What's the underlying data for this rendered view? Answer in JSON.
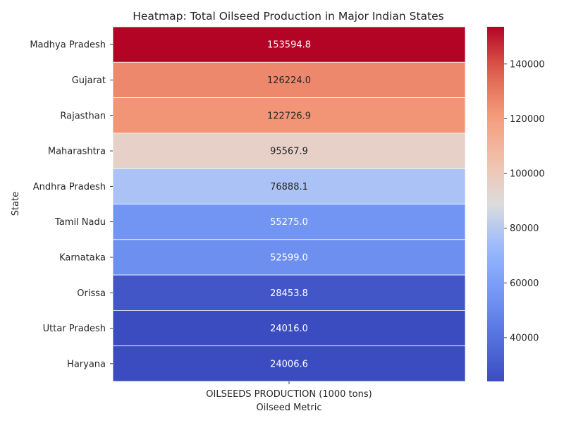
{
  "chart_data": {
    "type": "heatmap",
    "title": "Heatmap: Total Oilseed Production in Major Indian States",
    "xlabel": "Oilseed Metric",
    "ylabel": "State",
    "columns": [
      "OILSEEDS PRODUCTION (1000 tons)"
    ],
    "rows": [
      "Madhya Pradesh",
      "Gujarat",
      "Rajasthan",
      "Maharashtra",
      "Andhra Pradesh",
      "Tamil Nadu",
      "Karnataka",
      "Orissa",
      "Uttar Pradesh",
      "Haryana"
    ],
    "values": [
      153594.8,
      126224.0,
      122726.9,
      95567.9,
      76888.1,
      55275.0,
      52599.0,
      28453.8,
      24016.0,
      24006.6
    ],
    "value_labels": [
      "153594.8",
      "126224.0",
      "122726.9",
      "95567.9",
      "76888.1",
      "55275.0",
      "52599.0",
      "28453.8",
      "24016.0",
      "24006.6"
    ],
    "colormap": "coolwarm",
    "colorbar": {
      "range": [
        24006.6,
        153594.8
      ],
      "ticks": [
        40000,
        60000,
        80000,
        100000,
        120000,
        140000
      ],
      "tick_labels": [
        "40000",
        "60000",
        "80000",
        "100000",
        "120000",
        "140000"
      ]
    }
  }
}
